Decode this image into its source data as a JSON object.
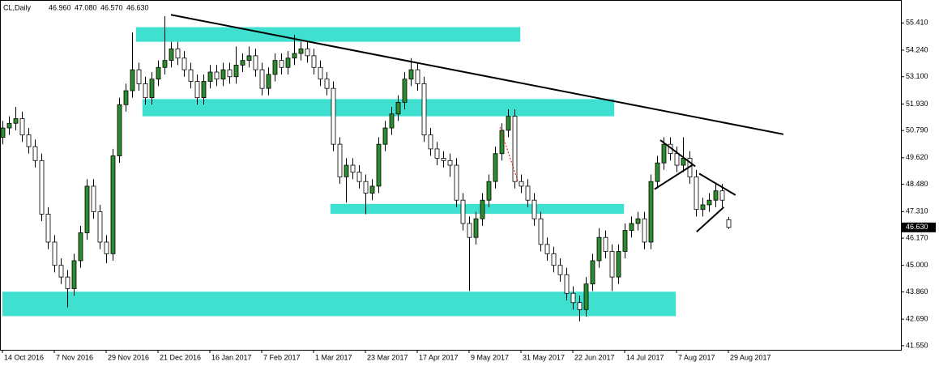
{
  "chart_data": {
    "type": "candlestick",
    "title": "CL,Daily",
    "header_values": [
      46.96,
      47.08,
      46.57,
      46.63
    ],
    "header_labels": [
      "46.960",
      "47.080",
      "46.570",
      "46.630"
    ],
    "open": [
      50.5,
      50.9,
      51.1,
      51.3,
      50.6,
      50.1,
      49.5,
      47.2,
      46.0,
      45.0,
      44.5,
      44.0,
      45.2,
      46.4,
      48.4,
      47.3,
      46.0,
      45.5,
      49.7,
      51.9,
      52.5,
      53.4,
      52.8,
      52.2,
      53.0,
      53.5,
      53.8,
      54.3,
      53.9,
      53.4,
      52.9,
      52.2,
      52.9,
      53.3,
      53.0,
      53.4,
      53.1,
      53.6,
      53.8,
      54.0,
      53.4,
      52.6,
      53.2,
      53.8,
      53.5,
      53.9,
      54.1,
      54.3,
      54.0,
      53.5,
      53.0,
      52.6,
      50.2,
      48.8,
      49.3,
      49.0,
      48.6,
      48.1,
      48.4,
      50.2,
      50.9,
      51.5,
      52.0,
      53.0,
      53.4,
      52.8,
      50.6,
      50.0,
      49.6,
      49.5,
      49.3,
      47.8,
      46.8,
      46.2,
      47.0,
      47.8,
      48.6,
      49.8,
      50.8,
      51.4,
      48.6,
      48.4,
      47.8,
      47.0,
      45.9,
      45.5,
      45.0,
      44.6,
      43.8,
      43.4,
      43.1,
      44.2,
      45.2,
      46.2,
      45.6,
      44.5,
      45.6,
      46.5,
      46.8,
      47.0,
      46.0,
      48.6,
      49.4,
      50.2,
      49.8,
      49.3,
      49.6,
      48.8,
      47.4,
      47.6,
      47.8,
      48.2,
      46.96
    ],
    "high": [
      51.2,
      51.4,
      51.8,
      51.6,
      50.9,
      50.4,
      49.8,
      47.5,
      46.3,
      45.3,
      44.8,
      45.5,
      46.7,
      48.7,
      48.7,
      47.6,
      46.3,
      50.0,
      52.2,
      52.8,
      55.0,
      53.7,
      53.1,
      53.3,
      53.8,
      55.7,
      54.6,
      54.6,
      54.2,
      53.7,
      53.2,
      53.2,
      53.6,
      53.6,
      53.7,
      53.7,
      54.4,
      54.1,
      54.4,
      54.3,
      53.7,
      53.5,
      54.1,
      54.1,
      54.2,
      54.9,
      54.6,
      54.6,
      54.3,
      53.8,
      53.3,
      52.9,
      50.5,
      49.6,
      49.6,
      49.3,
      48.9,
      48.7,
      50.5,
      51.2,
      51.8,
      52.3,
      53.3,
      53.9,
      53.7,
      53.1,
      50.9,
      50.3,
      49.9,
      49.8,
      49.6,
      48.1,
      47.1,
      47.3,
      48.1,
      48.9,
      50.1,
      51.1,
      51.7,
      51.7,
      48.9,
      48.7,
      48.1,
      47.3,
      46.2,
      45.8,
      45.3,
      44.9,
      44.1,
      43.7,
      44.5,
      45.5,
      46.6,
      46.5,
      45.9,
      45.9,
      46.8,
      47.1,
      47.3,
      47.3,
      48.9,
      49.7,
      50.5,
      50.5,
      50.1,
      50.5,
      49.9,
      49.1,
      47.9,
      48.1,
      48.5,
      48.5,
      47.08
    ],
    "low": [
      50.2,
      50.6,
      50.8,
      50.3,
      49.8,
      49.2,
      46.9,
      45.7,
      44.7,
      44.2,
      43.2,
      43.7,
      44.9,
      46.1,
      47.0,
      45.7,
      45.1,
      45.2,
      49.4,
      51.6,
      52.2,
      52.5,
      51.9,
      51.9,
      52.7,
      53.2,
      53.5,
      53.6,
      53.1,
      52.6,
      51.9,
      51.9,
      52.6,
      52.7,
      52.7,
      52.8,
      52.8,
      53.3,
      53.5,
      53.1,
      52.3,
      52.3,
      52.9,
      53.2,
      53.2,
      53.6,
      53.8,
      53.7,
      53.2,
      52.7,
      52.3,
      49.9,
      48.5,
      47.7,
      48.7,
      48.3,
      47.2,
      47.8,
      48.1,
      49.9,
      50.6,
      51.2,
      51.7,
      52.7,
      52.5,
      50.3,
      49.7,
      49.3,
      49.2,
      48.8,
      47.5,
      46.5,
      43.9,
      45.9,
      46.7,
      47.5,
      48.3,
      49.5,
      50.5,
      48.3,
      48.1,
      47.5,
      46.7,
      45.6,
      45.2,
      44.7,
      44.3,
      43.5,
      43.1,
      42.6,
      42.8,
      43.9,
      44.9,
      45.3,
      43.9,
      44.2,
      45.3,
      46.2,
      46.5,
      45.7,
      45.7,
      48.3,
      49.1,
      49.5,
      49.0,
      49.0,
      48.5,
      47.1,
      47.1,
      47.3,
      47.5,
      47.5,
      46.57
    ],
    "close": [
      50.9,
      51.1,
      51.3,
      50.6,
      50.1,
      49.5,
      47.2,
      46.0,
      45.0,
      44.5,
      44.0,
      45.2,
      46.4,
      48.4,
      47.3,
      46.0,
      45.5,
      49.7,
      51.9,
      52.5,
      53.4,
      52.8,
      52.2,
      53.0,
      53.5,
      53.8,
      54.3,
      53.9,
      53.4,
      52.9,
      52.2,
      52.9,
      53.3,
      53.0,
      53.4,
      53.1,
      53.6,
      53.8,
      54.0,
      53.4,
      52.6,
      53.2,
      53.8,
      53.5,
      53.9,
      54.1,
      54.3,
      54.0,
      53.5,
      53.0,
      52.6,
      50.2,
      48.8,
      49.3,
      49.0,
      48.6,
      48.1,
      48.4,
      50.2,
      50.9,
      51.5,
      52.0,
      53.0,
      53.4,
      52.8,
      50.6,
      50.0,
      49.6,
      49.5,
      49.3,
      47.8,
      46.8,
      46.2,
      47.0,
      47.8,
      48.6,
      49.8,
      50.8,
      51.4,
      48.6,
      48.4,
      47.8,
      47.0,
      45.9,
      45.5,
      45.0,
      44.6,
      43.8,
      43.4,
      43.1,
      44.2,
      45.2,
      46.2,
      45.6,
      44.5,
      45.6,
      46.5,
      46.8,
      47.0,
      46.0,
      48.6,
      49.4,
      50.2,
      49.8,
      49.3,
      49.6,
      48.8,
      47.4,
      47.6,
      47.8,
      48.2,
      47.8,
      46.63
    ],
    "up_color": "#2e8b2e",
    "down_color": "#ffffff",
    "wick_color": "#000000",
    "xlim": [
      -0.375,
      138.625
    ],
    "ylim": [
      41.374,
      56.395
    ],
    "yticks": [
      {
        "value": 55.41,
        "label": "55.410"
      },
      {
        "value": 54.24,
        "label": "54.240"
      },
      {
        "value": 53.1,
        "label": "53.100"
      },
      {
        "value": 51.93,
        "label": "51.930"
      },
      {
        "value": 50.79,
        "label": "50.790"
      },
      {
        "value": 49.62,
        "label": "49.620"
      },
      {
        "value": 48.48,
        "label": "48.480"
      },
      {
        "value": 47.31,
        "label": "47.310"
      },
      {
        "value": 46.17,
        "label": "46.170"
      },
      {
        "value": 45.0,
        "label": "45.000"
      },
      {
        "value": 43.86,
        "label": "43.860"
      },
      {
        "value": 42.69,
        "label": "42.690"
      },
      {
        "value": 41.55,
        "label": "41.550"
      }
    ],
    "xticks": [
      {
        "value": 0,
        "label": "14 Oct 2016"
      },
      {
        "value": 8,
        "label": "7 Nov 2016"
      },
      {
        "value": 16,
        "label": "29 Nov 2016"
      },
      {
        "value": 24,
        "label": "21 Dec 2016"
      },
      {
        "value": 32,
        "label": "16 Jan 2017"
      },
      {
        "value": 40,
        "label": "7 Feb 2017"
      },
      {
        "value": 48,
        "label": "1 Mar 2017"
      },
      {
        "value": 56,
        "label": "23 Mar 2017"
      },
      {
        "value": 64,
        "label": "17 Apr 2017"
      },
      {
        "value": 72,
        "label": "9 May 2017"
      },
      {
        "value": 80,
        "label": "31 May 2017"
      },
      {
        "value": 88,
        "label": "22 Jun 2017"
      },
      {
        "value": 96,
        "label": "14 Jul 2017"
      },
      {
        "value": 104,
        "label": "7 Aug 2017"
      },
      {
        "value": 112,
        "label": "29 Aug 2017"
      }
    ],
    "last_price": {
      "value": 46.63,
      "label": "46.630"
    },
    "zone_color": "#40e0d0",
    "zones": [
      {
        "from": 20.6,
        "to": 79.9,
        "top": 55.23,
        "bottom": 54.6
      },
      {
        "from": 21.6,
        "to": 94.4,
        "top": 52.14,
        "bottom": 51.4
      },
      {
        "from": 50.6,
        "to": 95.9,
        "top": 47.64,
        "bottom": 47.21
      },
      {
        "from": 0,
        "to": 103.9,
        "top": 43.87,
        "bottom": 42.82
      }
    ],
    "trendlines": [
      {
        "x": [
          26,
          120.5
        ],
        "y": [
          55.76,
          50.63
        ],
        "color": "#000000",
        "width": 2
      },
      {
        "x": [
          101.5,
          106.9
        ],
        "y": [
          50.38,
          49.25
        ],
        "color": "#000000",
        "width": 2
      },
      {
        "x": [
          100.6,
          106.5
        ],
        "y": [
          48.27,
          49.32
        ],
        "color": "#000000",
        "width": 2
      },
      {
        "x": [
          107.5,
          113.1
        ],
        "y": [
          48.94,
          48.02
        ],
        "color": "#000000",
        "width": 2
      },
      {
        "x": [
          107.1,
          111.3
        ],
        "y": [
          46.44,
          47.5
        ],
        "color": "#000000",
        "width": 2
      },
      {
        "x": [
          76.75,
          79.6
        ],
        "y": [
          50.94,
          48.55
        ],
        "color": "#ff0000",
        "width": 1,
        "dash": true
      }
    ]
  }
}
